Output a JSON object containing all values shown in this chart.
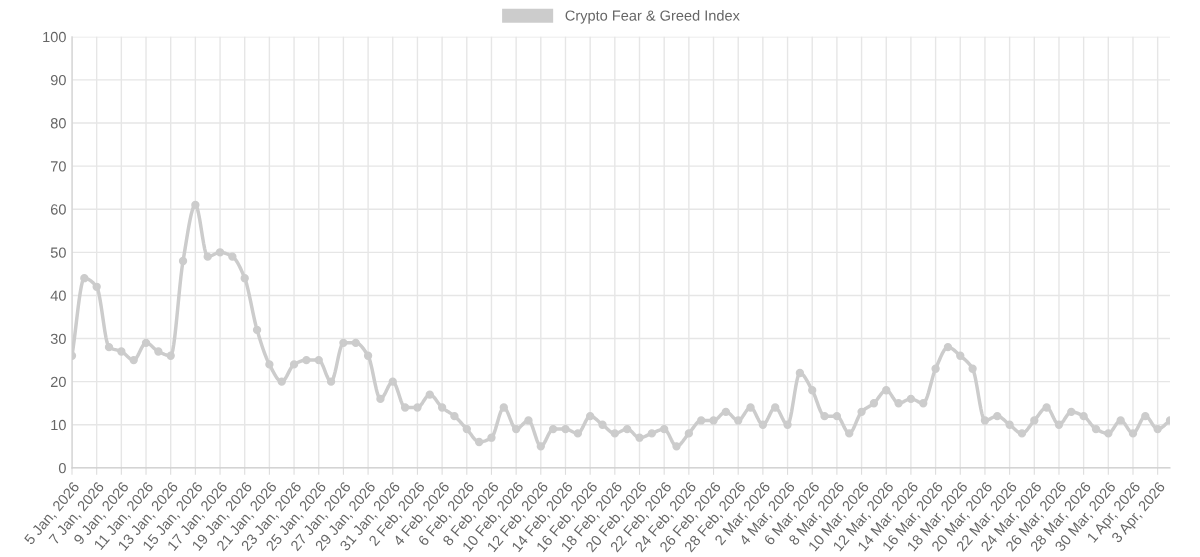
{
  "chart_data": {
    "type": "line",
    "categories": [
      "5 Jan, 2026",
      null,
      "7 Jan, 2026",
      null,
      "9 Jan, 2026",
      null,
      "11 Jan, 2026",
      null,
      "13 Jan, 2026",
      null,
      "15 Jan, 2026",
      null,
      "17 Jan, 2026",
      null,
      "19 Jan, 2026",
      null,
      "21 Jan, 2026",
      null,
      "23 Jan, 2026",
      null,
      "25 Jan, 2026",
      null,
      "27 Jan, 2026",
      null,
      "29 Jan, 2026",
      null,
      "31 Jan, 2026",
      null,
      "2 Feb, 2026",
      null,
      "4 Feb, 2026",
      null,
      "6 Feb, 2026",
      null,
      "8 Feb, 2026",
      null,
      "10 Feb, 2026",
      null,
      "12 Feb, 2026",
      null,
      "14 Feb, 2026",
      null,
      "16 Feb, 2026",
      null,
      "18 Feb, 2026",
      null,
      "20 Feb, 2026",
      null,
      "22 Feb, 2026",
      null,
      "24 Feb, 2026",
      null,
      "26 Feb, 2026",
      null,
      "28 Feb, 2026",
      null,
      "2 Mar, 2026",
      null,
      "4 Mar, 2026",
      null,
      "6 Mar, 2026",
      null,
      "8 Mar, 2026",
      null,
      "10 Mar, 2026",
      null,
      "12 Mar, 2026",
      null,
      "14 Mar, 2026",
      null,
      "16 Mar, 2026",
      null,
      "18 Mar, 2026",
      null,
      "20 Mar, 2026",
      null,
      "22 Mar, 2026",
      null,
      "24 Mar, 2026",
      null,
      "26 Mar, 2026",
      null,
      "28 Mar, 2026",
      null,
      "30 Mar, 2026",
      null,
      "1 Apr, 2026",
      null,
      "3 Apr, 2026",
      null
    ],
    "series": [
      {
        "name": "Crypto Fear & Greed Index",
        "color": "#cccccc",
        "values": [
          26,
          44,
          42,
          28,
          27,
          25,
          29,
          27,
          26,
          48,
          61,
          49,
          50,
          49,
          44,
          32,
          24,
          20,
          24,
          25,
          25,
          20,
          29,
          29,
          26,
          16,
          20,
          14,
          14,
          17,
          14,
          12,
          9,
          6,
          7,
          14,
          9,
          11,
          5,
          9,
          9,
          8,
          12,
          10,
          8,
          9,
          7,
          8,
          9,
          5,
          8,
          11,
          11,
          13,
          11,
          14,
          10,
          14,
          10,
          22,
          18,
          12,
          12,
          8,
          13,
          15,
          18,
          15,
          16,
          15,
          23,
          28,
          26,
          23,
          11,
          12,
          10,
          8,
          11,
          14,
          10,
          13,
          12,
          9,
          8,
          11,
          8,
          12,
          9,
          11
        ]
      }
    ],
    "ylim": [
      0,
      100
    ],
    "yticks": [
      0,
      10,
      20,
      30,
      40,
      50,
      60,
      70,
      80,
      90,
      100
    ],
    "grid": true,
    "legend": "top",
    "marker": "circle",
    "line_style": "solid"
  }
}
